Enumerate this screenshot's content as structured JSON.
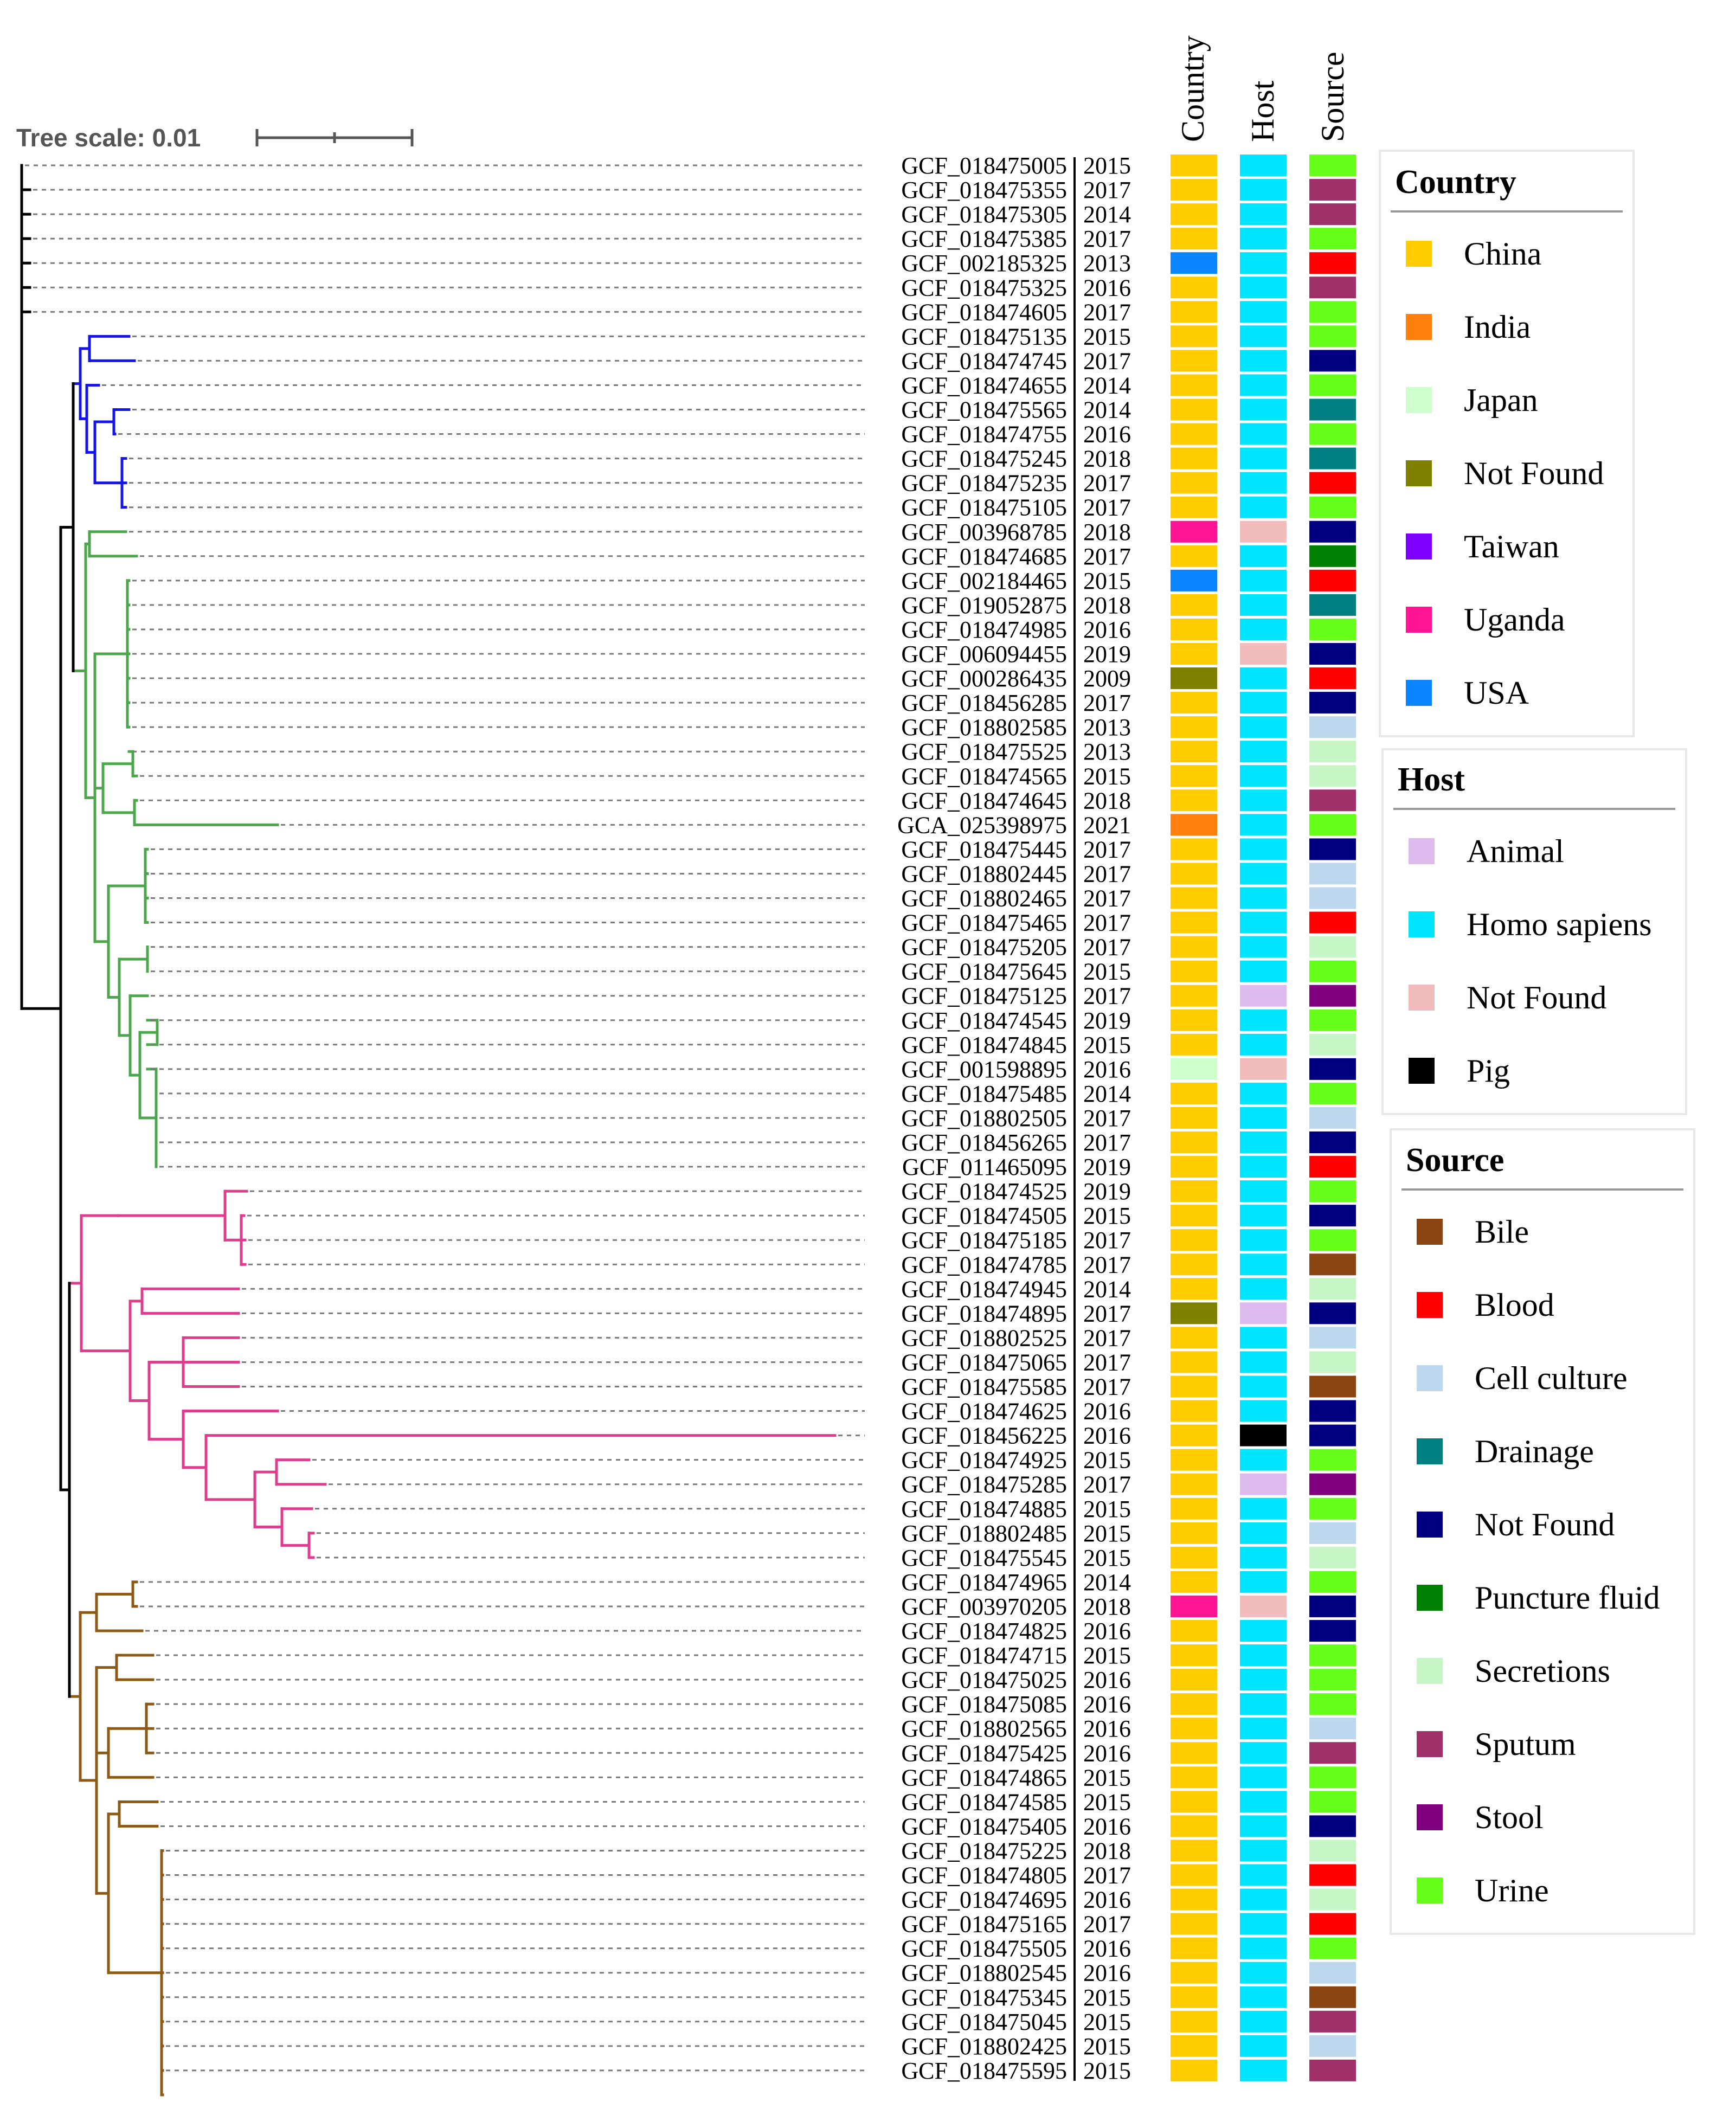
{
  "tree_scale": {
    "label": "Tree scale: 0.01"
  },
  "columns": [
    "Country",
    "Host",
    "Source"
  ],
  "leaves": [
    {
      "id": "GCF_018475005",
      "year": "2015",
      "country": "China",
      "host": "Homo sapiens",
      "source": "Urine",
      "clade": "none"
    },
    {
      "id": "GCF_018475355",
      "year": "2017",
      "country": "China",
      "host": "Homo sapiens",
      "source": "Sputum",
      "clade": "none"
    },
    {
      "id": "GCF_018475305",
      "year": "2014",
      "country": "China",
      "host": "Homo sapiens",
      "source": "Sputum",
      "clade": "none"
    },
    {
      "id": "GCF_018475385",
      "year": "2017",
      "country": "China",
      "host": "Homo sapiens",
      "source": "Urine",
      "clade": "none"
    },
    {
      "id": "GCF_002185325",
      "year": "2013",
      "country": "USA",
      "host": "Homo sapiens",
      "source": "Blood",
      "clade": "none"
    },
    {
      "id": "GCF_018475325",
      "year": "2016",
      "country": "China",
      "host": "Homo sapiens",
      "source": "Sputum",
      "clade": "none"
    },
    {
      "id": "GCF_018474605",
      "year": "2017",
      "country": "China",
      "host": "Homo sapiens",
      "source": "Urine",
      "clade": "none"
    },
    {
      "id": "GCF_018475135",
      "year": "2015",
      "country": "China",
      "host": "Homo sapiens",
      "source": "Urine",
      "clade": "blue"
    },
    {
      "id": "GCF_018474745",
      "year": "2017",
      "country": "China",
      "host": "Homo sapiens",
      "source": "Not Found",
      "clade": "blue"
    },
    {
      "id": "GCF_018474655",
      "year": "2014",
      "country": "China",
      "host": "Homo sapiens",
      "source": "Urine",
      "clade": "blue"
    },
    {
      "id": "GCF_018475565",
      "year": "2014",
      "country": "China",
      "host": "Homo sapiens",
      "source": "Drainage",
      "clade": "blue"
    },
    {
      "id": "GCF_018474755",
      "year": "2016",
      "country": "China",
      "host": "Homo sapiens",
      "source": "Urine",
      "clade": "blue"
    },
    {
      "id": "GCF_018475245",
      "year": "2018",
      "country": "China",
      "host": "Homo sapiens",
      "source": "Drainage",
      "clade": "blue"
    },
    {
      "id": "GCF_018475235",
      "year": "2017",
      "country": "China",
      "host": "Homo sapiens",
      "source": "Blood",
      "clade": "blue"
    },
    {
      "id": "GCF_018475105",
      "year": "2017",
      "country": "China",
      "host": "Homo sapiens",
      "source": "Urine",
      "clade": "blue"
    },
    {
      "id": "GCF_003968785",
      "year": "2018",
      "country": "Uganda",
      "host": "Not Found",
      "source": "Not Found",
      "clade": "green"
    },
    {
      "id": "GCF_018474685",
      "year": "2017",
      "country": "China",
      "host": "Homo sapiens",
      "source": "Puncture fluid",
      "clade": "green"
    },
    {
      "id": "GCF_002184465",
      "year": "2015",
      "country": "USA",
      "host": "Homo sapiens",
      "source": "Blood",
      "clade": "green"
    },
    {
      "id": "GCF_019052875",
      "year": "2018",
      "country": "China",
      "host": "Homo sapiens",
      "source": "Drainage",
      "clade": "green"
    },
    {
      "id": "GCF_018474985",
      "year": "2016",
      "country": "China",
      "host": "Homo sapiens",
      "source": "Urine",
      "clade": "green"
    },
    {
      "id": "GCF_006094455",
      "year": "2019",
      "country": "China",
      "host": "Not Found",
      "source": "Not Found",
      "clade": "green"
    },
    {
      "id": "GCF_000286435",
      "year": "2009",
      "country": "Not Found",
      "host": "Homo sapiens",
      "source": "Blood",
      "clade": "green"
    },
    {
      "id": "GCF_018456285",
      "year": "2017",
      "country": "China",
      "host": "Homo sapiens",
      "source": "Not Found",
      "clade": "green"
    },
    {
      "id": "GCF_018802585",
      "year": "2013",
      "country": "China",
      "host": "Homo sapiens",
      "source": "Cell culture",
      "clade": "green"
    },
    {
      "id": "GCF_018475525",
      "year": "2013",
      "country": "China",
      "host": "Homo sapiens",
      "source": "Secretions",
      "clade": "green"
    },
    {
      "id": "GCF_018474565",
      "year": "2015",
      "country": "China",
      "host": "Homo sapiens",
      "source": "Secretions",
      "clade": "green"
    },
    {
      "id": "GCF_018474645",
      "year": "2018",
      "country": "China",
      "host": "Homo sapiens",
      "source": "Sputum",
      "clade": "green"
    },
    {
      "id": "GCA_025398975",
      "year": "2021",
      "country": "India",
      "host": "Homo sapiens",
      "source": "Urine",
      "clade": "green"
    },
    {
      "id": "GCF_018475445",
      "year": "2017",
      "country": "China",
      "host": "Homo sapiens",
      "source": "Not Found",
      "clade": "green"
    },
    {
      "id": "GCF_018802445",
      "year": "2017",
      "country": "China",
      "host": "Homo sapiens",
      "source": "Cell culture",
      "clade": "green"
    },
    {
      "id": "GCF_018802465",
      "year": "2017",
      "country": "China",
      "host": "Homo sapiens",
      "source": "Cell culture",
      "clade": "green"
    },
    {
      "id": "GCF_018475465",
      "year": "2017",
      "country": "China",
      "host": "Homo sapiens",
      "source": "Blood",
      "clade": "green"
    },
    {
      "id": "GCF_018475205",
      "year": "2017",
      "country": "China",
      "host": "Homo sapiens",
      "source": "Secretions",
      "clade": "green"
    },
    {
      "id": "GCF_018475645",
      "year": "2015",
      "country": "China",
      "host": "Homo sapiens",
      "source": "Urine",
      "clade": "green"
    },
    {
      "id": "GCF_018475125",
      "year": "2017",
      "country": "China",
      "host": "Animal",
      "source": "Stool",
      "clade": "green"
    },
    {
      "id": "GCF_018474545",
      "year": "2019",
      "country": "China",
      "host": "Homo sapiens",
      "source": "Urine",
      "clade": "green"
    },
    {
      "id": "GCF_018474845",
      "year": "2015",
      "country": "China",
      "host": "Homo sapiens",
      "source": "Secretions",
      "clade": "green"
    },
    {
      "id": "GCF_001598895",
      "year": "2016",
      "country": "Japan",
      "host": "Not Found",
      "source": "Not Found",
      "clade": "green"
    },
    {
      "id": "GCF_018475485",
      "year": "2014",
      "country": "China",
      "host": "Homo sapiens",
      "source": "Urine",
      "clade": "green"
    },
    {
      "id": "GCF_018802505",
      "year": "2017",
      "country": "China",
      "host": "Homo sapiens",
      "source": "Cell culture",
      "clade": "green"
    },
    {
      "id": "GCF_018456265",
      "year": "2017",
      "country": "China",
      "host": "Homo sapiens",
      "source": "Not Found",
      "clade": "green"
    },
    {
      "id": "GCF_011465095",
      "year": "2019",
      "country": "China",
      "host": "Homo sapiens",
      "source": "Blood",
      "clade": "green"
    },
    {
      "id": "GCF_018474525",
      "year": "2019",
      "country": "China",
      "host": "Homo sapiens",
      "source": "Urine",
      "clade": "pink"
    },
    {
      "id": "GCF_018474505",
      "year": "2015",
      "country": "China",
      "host": "Homo sapiens",
      "source": "Not Found",
      "clade": "pink"
    },
    {
      "id": "GCF_018475185",
      "year": "2017",
      "country": "China",
      "host": "Homo sapiens",
      "source": "Urine",
      "clade": "pink"
    },
    {
      "id": "GCF_018474785",
      "year": "2017",
      "country": "China",
      "host": "Homo sapiens",
      "source": "Bile",
      "clade": "pink"
    },
    {
      "id": "GCF_018474945",
      "year": "2014",
      "country": "China",
      "host": "Homo sapiens",
      "source": "Secretions",
      "clade": "pink"
    },
    {
      "id": "GCF_018474895",
      "year": "2017",
      "country": "Not Found",
      "host": "Animal",
      "source": "Not Found",
      "clade": "pink"
    },
    {
      "id": "GCF_018802525",
      "year": "2017",
      "country": "China",
      "host": "Homo sapiens",
      "source": "Cell culture",
      "clade": "pink"
    },
    {
      "id": "GCF_018475065",
      "year": "2017",
      "country": "China",
      "host": "Homo sapiens",
      "source": "Secretions",
      "clade": "pink"
    },
    {
      "id": "GCF_018475585",
      "year": "2017",
      "country": "China",
      "host": "Homo sapiens",
      "source": "Bile",
      "clade": "pink"
    },
    {
      "id": "GCF_018474625",
      "year": "2016",
      "country": "China",
      "host": "Homo sapiens",
      "source": "Not Found",
      "clade": "pink"
    },
    {
      "id": "GCF_018456225",
      "year": "2016",
      "country": "China",
      "host": "Pig",
      "source": "Not Found",
      "clade": "pink"
    },
    {
      "id": "GCF_018474925",
      "year": "2015",
      "country": "China",
      "host": "Homo sapiens",
      "source": "Urine",
      "clade": "pink"
    },
    {
      "id": "GCF_018475285",
      "year": "2017",
      "country": "China",
      "host": "Animal",
      "source": "Stool",
      "clade": "pink"
    },
    {
      "id": "GCF_018474885",
      "year": "2015",
      "country": "China",
      "host": "Homo sapiens",
      "source": "Urine",
      "clade": "pink"
    },
    {
      "id": "GCF_018802485",
      "year": "2015",
      "country": "China",
      "host": "Homo sapiens",
      "source": "Cell culture",
      "clade": "pink"
    },
    {
      "id": "GCF_018475545",
      "year": "2015",
      "country": "China",
      "host": "Homo sapiens",
      "source": "Secretions",
      "clade": "pink"
    },
    {
      "id": "GCF_018474965",
      "year": "2014",
      "country": "China",
      "host": "Homo sapiens",
      "source": "Urine",
      "clade": "brown"
    },
    {
      "id": "GCF_003970205",
      "year": "2018",
      "country": "Uganda",
      "host": "Not Found",
      "source": "Not Found",
      "clade": "brown"
    },
    {
      "id": "GCF_018474825",
      "year": "2016",
      "country": "China",
      "host": "Homo sapiens",
      "source": "Not Found",
      "clade": "brown"
    },
    {
      "id": "GCF_018474715",
      "year": "2015",
      "country": "China",
      "host": "Homo sapiens",
      "source": "Urine",
      "clade": "brown"
    },
    {
      "id": "GCF_018475025",
      "year": "2016",
      "country": "China",
      "host": "Homo sapiens",
      "source": "Urine",
      "clade": "brown"
    },
    {
      "id": "GCF_018475085",
      "year": "2016",
      "country": "China",
      "host": "Homo sapiens",
      "source": "Urine",
      "clade": "brown"
    },
    {
      "id": "GCF_018802565",
      "year": "2016",
      "country": "China",
      "host": "Homo sapiens",
      "source": "Cell culture",
      "clade": "brown"
    },
    {
      "id": "GCF_018475425",
      "year": "2016",
      "country": "China",
      "host": "Homo sapiens",
      "source": "Sputum",
      "clade": "brown"
    },
    {
      "id": "GCF_018474865",
      "year": "2015",
      "country": "China",
      "host": "Homo sapiens",
      "source": "Urine",
      "clade": "brown"
    },
    {
      "id": "GCF_018474585",
      "year": "2015",
      "country": "China",
      "host": "Homo sapiens",
      "source": "Urine",
      "clade": "brown"
    },
    {
      "id": "GCF_018475405",
      "year": "2016",
      "country": "China",
      "host": "Homo sapiens",
      "source": "Not Found",
      "clade": "brown"
    },
    {
      "id": "GCF_018475225",
      "year": "2018",
      "country": "China",
      "host": "Homo sapiens",
      "source": "Secretions",
      "clade": "brown"
    },
    {
      "id": "GCF_018474805",
      "year": "2017",
      "country": "China",
      "host": "Homo sapiens",
      "source": "Blood",
      "clade": "brown"
    },
    {
      "id": "GCF_018474695",
      "year": "2016",
      "country": "China",
      "host": "Homo sapiens",
      "source": "Secretions",
      "clade": "brown"
    },
    {
      "id": "GCF_018475165",
      "year": "2017",
      "country": "China",
      "host": "Homo sapiens",
      "source": "Blood",
      "clade": "brown"
    },
    {
      "id": "GCF_018475505",
      "year": "2016",
      "country": "China",
      "host": "Homo sapiens",
      "source": "Urine",
      "clade": "brown"
    },
    {
      "id": "GCF_018802545",
      "year": "2016",
      "country": "China",
      "host": "Homo sapiens",
      "source": "Cell culture",
      "clade": "brown"
    },
    {
      "id": "GCF_018475345",
      "year": "2015",
      "country": "China",
      "host": "Homo sapiens",
      "source": "Bile",
      "clade": "brown"
    },
    {
      "id": "GCF_018475045",
      "year": "2015",
      "country": "China",
      "host": "Homo sapiens",
      "source": "Sputum",
      "clade": "brown"
    },
    {
      "id": "GCF_018802425",
      "year": "2015",
      "country": "China",
      "host": "Homo sapiens",
      "source": "Cell culture",
      "clade": "brown"
    },
    {
      "id": "GCF_018475595",
      "year": "2015",
      "country": "China",
      "host": "Homo sapiens",
      "source": "Sputum",
      "clade": "brown"
    }
  ],
  "legend": {
    "country": {
      "title": "Country",
      "items": [
        {
          "label": "China",
          "color": "#FFCC00"
        },
        {
          "label": "India",
          "color": "#FF7F0E"
        },
        {
          "label": "Japan",
          "color": "#CCFFCC"
        },
        {
          "label": "Not Found",
          "color": "#808000"
        },
        {
          "label": "Taiwan",
          "color": "#7F00FF"
        },
        {
          "label": "Uganda",
          "color": "#FF1493"
        },
        {
          "label": "USA",
          "color": "#0A84FF"
        }
      ]
    },
    "host": {
      "title": "Host",
      "items": [
        {
          "label": "Animal",
          "color": "#DDBBEE"
        },
        {
          "label": "Homo sapiens",
          "color": "#00E5FF"
        },
        {
          "label": "Not Found",
          "color": "#F2BCBC"
        },
        {
          "label": "Pig",
          "color": "#000000"
        }
      ]
    },
    "source": {
      "title": "Source",
      "items": [
        {
          "label": "Bile",
          "color": "#8B4513"
        },
        {
          "label": "Blood",
          "color": "#FF0000"
        },
        {
          "label": "Cell culture",
          "color": "#BDD7EE"
        },
        {
          "label": "Drainage",
          "color": "#008080"
        },
        {
          "label": "Not Found",
          "color": "#000080"
        },
        {
          "label": "Puncture fluid",
          "color": "#008000"
        },
        {
          "label": "Secretions",
          "color": "#C6F5C6"
        },
        {
          "label": "Sputum",
          "color": "#A0306A"
        },
        {
          "label": "Stool",
          "color": "#800080"
        },
        {
          "label": "Urine",
          "color": "#66FF1A"
        }
      ]
    }
  },
  "clade_colors": {
    "none": "#000000",
    "blue": "#1414E6",
    "green": "#4CA64C",
    "pink": "#DE3C8C",
    "brown": "#8C5A14"
  }
}
